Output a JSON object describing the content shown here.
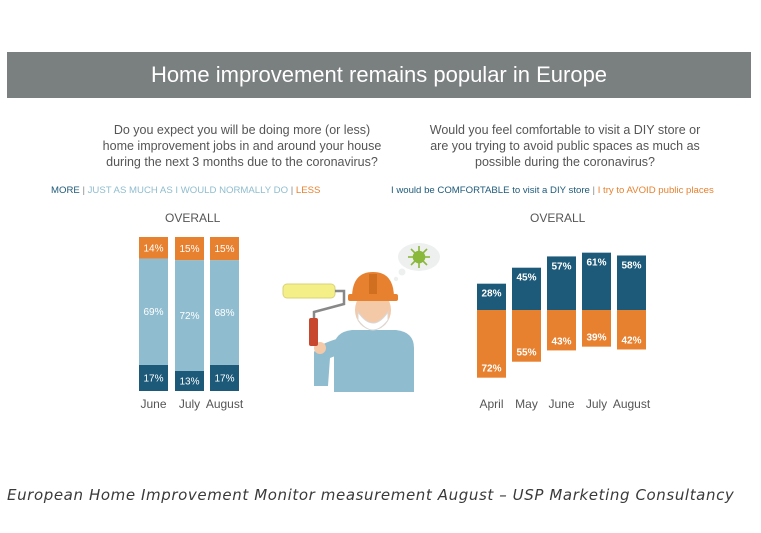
{
  "header": {
    "title": "Home improvement remains popular in Europe"
  },
  "left": {
    "question": "Do you expect you will be doing more (or less)\nhome improvement jobs in and around your house\nduring the next 3 months due to the coronavirus?",
    "legend": {
      "more": "MORE",
      "sep1": " | ",
      "same": "JUST AS MUCH AS I WOULD NORMALLY DO",
      "sep2": " | ",
      "less": "LESS"
    },
    "overall_label": "OVERALL"
  },
  "right": {
    "question": "Would you feel comfortable to visit a DIY store or\nare you trying to avoid public spaces as much as\npossible during the coronavirus?",
    "legend": {
      "comfortable": "I would be COMFORTABLE to visit a DIY store",
      "sep": " | ",
      "avoid": "I try to AVOID public places"
    },
    "overall_label": "OVERALL"
  },
  "colors": {
    "dark_blue": "#1d5a79",
    "light_blue": "#8fbdcf",
    "orange": "#e8812f",
    "banner": "#7a7f80",
    "virus_green": "#8ab83c"
  },
  "caption": "European Home Improvement Monitor measurement August – USP Marketing Consultancy",
  "chart_data": [
    {
      "type": "bar",
      "stacked": true,
      "title": "OVERALL",
      "categories": [
        "June",
        "July",
        "August"
      ],
      "series": [
        {
          "name": "MORE",
          "values": [
            17,
            13,
            17
          ],
          "labels": [
            "17%",
            "13%",
            "17%"
          ],
          "color": "#1d5a79"
        },
        {
          "name": "JUST AS MUCH AS I WOULD NORMALLY DO",
          "values": [
            69,
            72,
            68
          ],
          "labels": [
            "69%",
            "72%",
            "68%"
          ],
          "color": "#8fbdcf"
        },
        {
          "name": "LESS",
          "values": [
            14,
            15,
            15
          ],
          "labels": [
            "14%",
            "15%",
            "15%"
          ],
          "color": "#e8812f"
        }
      ],
      "ylim": [
        0,
        100
      ]
    },
    {
      "type": "bar",
      "diverging": true,
      "title": "OVERALL",
      "categories": [
        "April",
        "May",
        "June",
        "July",
        "August"
      ],
      "series": [
        {
          "name": "I would be COMFORTABLE to visit a DIY store",
          "values": [
            28,
            45,
            57,
            61,
            58
          ],
          "labels": [
            "28%",
            "45%",
            "57%",
            "61%",
            "58%"
          ],
          "color": "#1d5a79",
          "direction": "up"
        },
        {
          "name": "I try to AVOID public places",
          "values": [
            72,
            55,
            43,
            39,
            42
          ],
          "labels": [
            "72%",
            "55%",
            "43%",
            "39%",
            "42%"
          ],
          "color": "#e8812f",
          "direction": "down"
        }
      ]
    }
  ]
}
